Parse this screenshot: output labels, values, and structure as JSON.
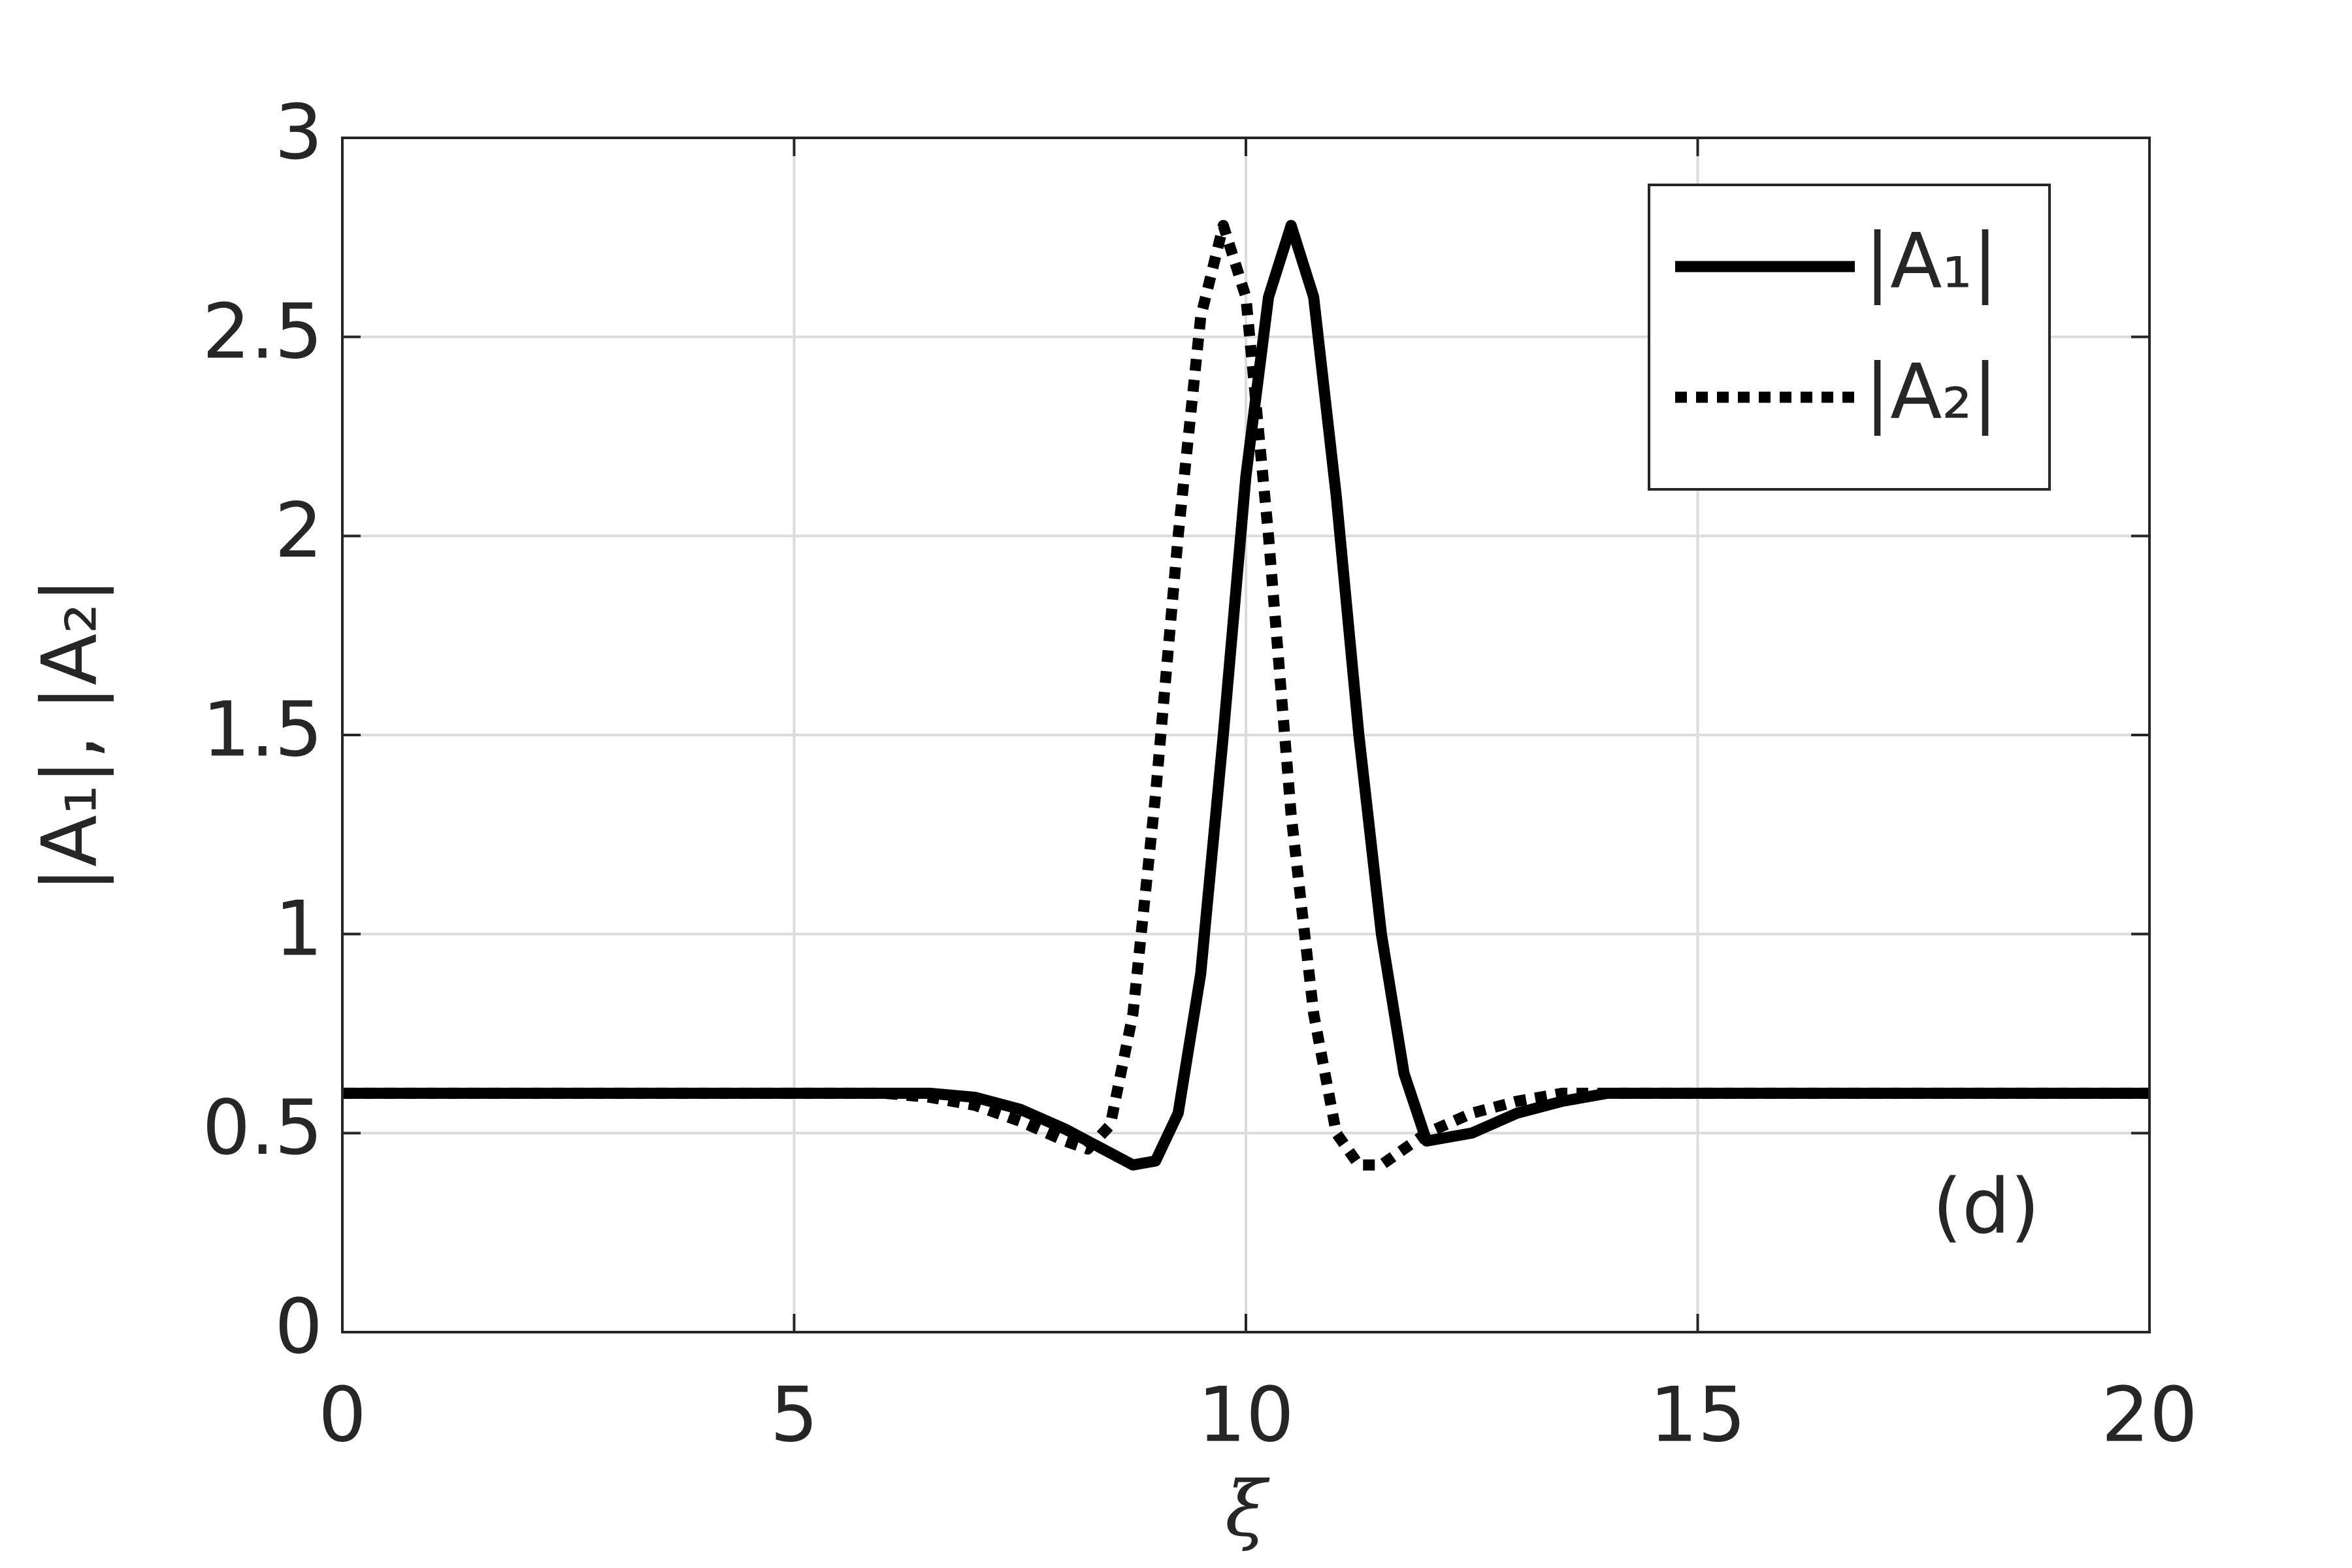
{
  "chart_data": {
    "type": "line",
    "x_label": "ξ",
    "y_label": "|A₁|, |A₂|",
    "annotation": "(d)",
    "x": [
      0,
      1,
      2,
      3,
      4,
      5,
      6,
      6.5,
      7,
      7.5,
      8,
      8.25,
      8.5,
      8.75,
      9,
      9.25,
      9.5,
      9.75,
      10,
      10.25,
      10.5,
      10.75,
      11,
      11.25,
      11.5,
      11.75,
      12,
      12.5,
      13,
      13.5,
      14,
      15,
      16,
      17,
      18,
      19,
      20
    ],
    "series": [
      {
        "name": "|A₁|",
        "color": "#000000",
        "style": "solid",
        "values": [
          0.6,
          0.6,
          0.6,
          0.6,
          0.6,
          0.6,
          0.6,
          0.6,
          0.59,
          0.56,
          0.51,
          0.48,
          0.45,
          0.42,
          0.43,
          0.55,
          0.9,
          1.5,
          2.15,
          2.6,
          2.78,
          2.6,
          2.1,
          1.5,
          1.0,
          0.65,
          0.48,
          0.5,
          0.55,
          0.58,
          0.6,
          0.6,
          0.6,
          0.6,
          0.6,
          0.6,
          0.6
        ]
      },
      {
        "name": "|A₂|",
        "color": "#000000",
        "style": "dotted",
        "values": [
          0.6,
          0.6,
          0.6,
          0.6,
          0.6,
          0.6,
          0.6,
          0.59,
          0.57,
          0.53,
          0.48,
          0.46,
          0.52,
          0.8,
          1.35,
          2.0,
          2.55,
          2.78,
          2.6,
          2.0,
          1.3,
          0.8,
          0.5,
          0.42,
          0.42,
          0.46,
          0.5,
          0.55,
          0.58,
          0.6,
          0.6,
          0.6,
          0.6,
          0.6,
          0.6,
          0.6,
          0.6
        ]
      }
    ],
    "xlim": [
      0,
      20
    ],
    "xticks": [
      0,
      5,
      10,
      15,
      20
    ],
    "ylim": [
      0,
      3
    ],
    "yticks": [
      0,
      0.5,
      1,
      1.5,
      2,
      2.5,
      3
    ],
    "grid": true,
    "legend": "upper right"
  }
}
